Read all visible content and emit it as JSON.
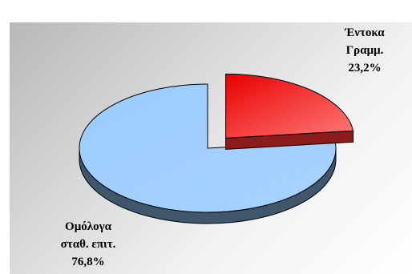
{
  "chart_data": {
    "type": "pie",
    "title": "",
    "slices": [
      {
        "label_lines": [
          "Έντοκα",
          "Γραμμ."
        ],
        "value": 23.2,
        "value_label": "23,2%",
        "color": "#ff3333",
        "exploded": true
      },
      {
        "label_lines": [
          "Ομόλογα",
          "σταθ. επιτ."
        ],
        "value": 76.8,
        "value_label": "76,8%",
        "color": "#99ccff",
        "exploded": false
      }
    ],
    "three_d": true,
    "legend": "none"
  }
}
